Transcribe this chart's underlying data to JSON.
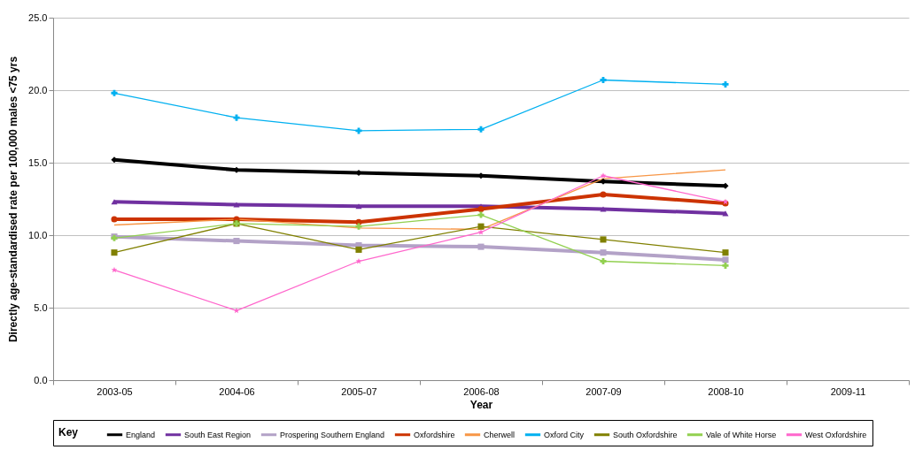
{
  "chart_data": {
    "type": "line",
    "xlabel": "Year",
    "ylabel": "Directly age-standardised rate per 100,000 males <75 yrs",
    "legend_title": "Key",
    "categories": [
      "2003-05",
      "2004-06",
      "2005-07",
      "2006-08",
      "2007-09",
      "2008-10",
      "2009-11"
    ],
    "ylim": [
      0,
      25
    ],
    "yticks": [
      {
        "value": 0,
        "label": "0.0"
      },
      {
        "value": 5,
        "label": "5.0"
      },
      {
        "value": 10,
        "label": "10.0"
      },
      {
        "value": 15,
        "label": "15.0"
      },
      {
        "value": 20,
        "label": "20.0"
      },
      {
        "value": 25,
        "label": "25.0"
      }
    ],
    "grid": "y",
    "legend": "bottom",
    "series": [
      {
        "name": "England",
        "color": "#000000",
        "marker": "diamond",
        "values": [
          15.2,
          14.5,
          14.3,
          14.1,
          13.7,
          13.4,
          null
        ]
      },
      {
        "name": "South East Region",
        "color": "#7030a0",
        "marker": "triangle",
        "values": [
          12.3,
          12.1,
          12.0,
          12.0,
          11.8,
          11.5,
          null
        ]
      },
      {
        "name": "Prospering Southern England",
        "color": "#b3a2c7",
        "marker": "square",
        "values": [
          9.9,
          9.6,
          9.3,
          9.2,
          8.8,
          8.3,
          null
        ]
      },
      {
        "name": "Oxfordshire",
        "color": "#cc3300",
        "marker": "circle",
        "values": [
          11.1,
          11.1,
          10.9,
          11.8,
          12.8,
          12.2,
          null
        ]
      },
      {
        "name": "Cherwell",
        "color": "#f79646",
        "marker": "none",
        "values": [
          10.7,
          11.1,
          10.5,
          10.4,
          13.9,
          14.5,
          null
        ]
      },
      {
        "name": "Oxford City",
        "color": "#00b0f0",
        "marker": "cross",
        "values": [
          19.8,
          18.1,
          17.2,
          17.3,
          20.7,
          20.4,
          null
        ]
      },
      {
        "name": "South Oxfordshire",
        "color": "#808000",
        "marker": "square",
        "values": [
          8.8,
          10.8,
          9.0,
          10.6,
          9.7,
          8.8,
          null
        ]
      },
      {
        "name": "Vale of White Horse",
        "color": "#92d050",
        "marker": "cross",
        "values": [
          9.8,
          10.8,
          10.6,
          11.4,
          8.2,
          7.9,
          null
        ]
      },
      {
        "name": "West Oxfordshire",
        "color": "#ff66cc",
        "marker": "star",
        "values": [
          7.6,
          4.8,
          8.2,
          10.2,
          14.1,
          12.3,
          null
        ]
      }
    ]
  }
}
